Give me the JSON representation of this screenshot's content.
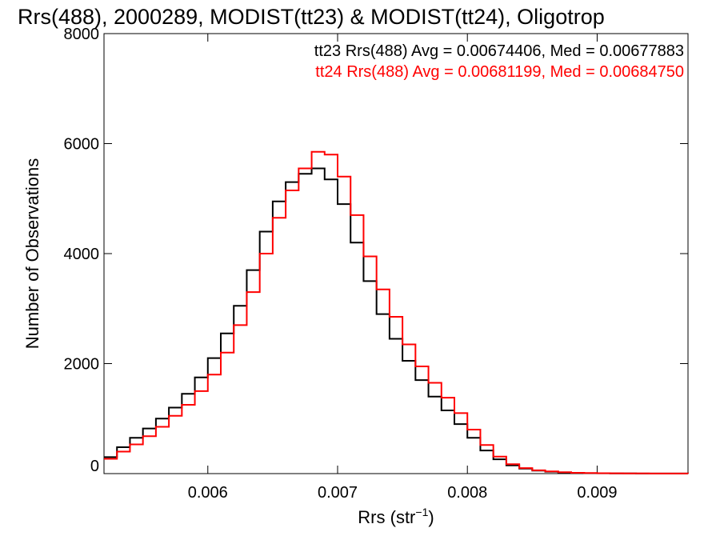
{
  "chart_data": {
    "type": "line",
    "title": "Rrs(488), 2000289, MODIST(tt23) & MODIST(tt24), Oligotrop",
    "xlabel": {
      "main": "Rrs (str",
      "sup": "−1",
      "close": ")"
    },
    "ylabel": "Number of Observations",
    "xlim": [
      0.0052,
      0.0097
    ],
    "ylim": [
      0,
      8000
    ],
    "grid": false,
    "step": true,
    "legend_position": "top-right",
    "xticks": [
      {
        "value": 0.006,
        "label": "0.006"
      },
      {
        "value": 0.007,
        "label": "0.007"
      },
      {
        "value": 0.008,
        "label": "0.008"
      },
      {
        "value": 0.009,
        "label": "0.009"
      }
    ],
    "yticks": [
      {
        "value": 0,
        "label": "0"
      },
      {
        "value": 2000,
        "label": "2000"
      },
      {
        "value": 4000,
        "label": "4000"
      },
      {
        "value": 6000,
        "label": "6000"
      },
      {
        "value": 8000,
        "label": "8000"
      }
    ],
    "series": [
      {
        "legend": "tt23 Rrs(488) Avg = 0.00674406, Med = 0.00677883",
        "color": "#000000",
        "x": [
          0.0052,
          0.0053,
          0.0054,
          0.0055,
          0.0056,
          0.0057,
          0.0058,
          0.0059,
          0.006,
          0.0061,
          0.0062,
          0.0063,
          0.0064,
          0.0065,
          0.0066,
          0.0067,
          0.0068,
          0.0069,
          0.007,
          0.0071,
          0.0072,
          0.0073,
          0.0074,
          0.0075,
          0.0076,
          0.0077,
          0.0078,
          0.0079,
          0.008,
          0.0081,
          0.0082,
          0.0083,
          0.0084,
          0.0085,
          0.0086,
          0.0087,
          0.0088,
          0.0089,
          0.009,
          0.0091,
          0.0092,
          0.0093,
          0.0094,
          0.0095,
          0.0096,
          0.0097
        ],
        "y": [
          300,
          480,
          650,
          820,
          1000,
          1200,
          1450,
          1750,
          2100,
          2550,
          3050,
          3700,
          4400,
          4950,
          5300,
          5450,
          5550,
          5350,
          4900,
          4200,
          3500,
          2900,
          2450,
          2050,
          1700,
          1400,
          1150,
          900,
          650,
          420,
          260,
          150,
          90,
          55,
          35,
          20,
          12,
          8,
          5,
          4,
          3,
          2,
          2,
          1,
          1,
          0
        ]
      },
      {
        "legend": "tt24 Rrs(488) Avg = 0.00681199, Med = 0.00684750",
        "color": "#ff0000",
        "x": [
          0.0052,
          0.0053,
          0.0054,
          0.0055,
          0.0056,
          0.0057,
          0.0058,
          0.0059,
          0.006,
          0.0061,
          0.0062,
          0.0063,
          0.0064,
          0.0065,
          0.0066,
          0.0067,
          0.0068,
          0.0069,
          0.007,
          0.0071,
          0.0072,
          0.0073,
          0.0074,
          0.0075,
          0.0076,
          0.0077,
          0.0078,
          0.0079,
          0.008,
          0.0081,
          0.0082,
          0.0083,
          0.0084,
          0.0085,
          0.0086,
          0.0087,
          0.0088,
          0.0089,
          0.009,
          0.0091,
          0.0092,
          0.0093,
          0.0094,
          0.0095,
          0.0096,
          0.0097
        ],
        "y": [
          270,
          400,
          530,
          680,
          850,
          1050,
          1250,
          1500,
          1800,
          2200,
          2700,
          3300,
          4000,
          4650,
          5150,
          5550,
          5850,
          5800,
          5400,
          4700,
          3950,
          3350,
          2850,
          2350,
          1950,
          1650,
          1380,
          1100,
          800,
          520,
          310,
          170,
          100,
          60,
          40,
          25,
          15,
          10,
          7,
          5,
          4,
          3,
          2,
          1,
          1,
          0
        ]
      }
    ]
  }
}
